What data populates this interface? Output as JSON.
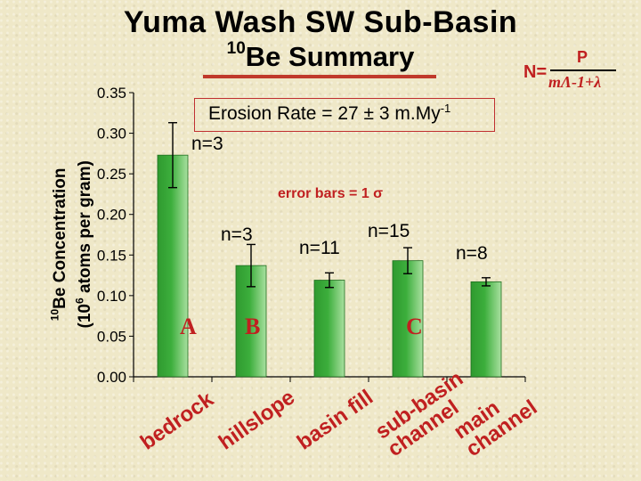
{
  "header": {
    "title_line1": "Yuma Wash SW Sub-Basin",
    "title_line2_sup": "10",
    "title_line2": "Be Summary"
  },
  "formula": {
    "lhs": "N=",
    "numerator": "P",
    "denominator": "mΛ-1+λ"
  },
  "annotations": {
    "erosion_rate": "Erosion Rate = 27 ± 3 m.My",
    "erosion_rate_sup": "-1",
    "error_note": "error bars = 1 σ",
    "letters": [
      "A",
      "B",
      "C"
    ]
  },
  "y_axis_label": {
    "sup1": "10",
    "line1": "Be Concentration",
    "line2_pre": "(10",
    "line2_sup": "6",
    "line2_post": " atoms per gram)"
  },
  "chart_data": {
    "type": "bar",
    "categories": [
      "bedrock",
      "hillslope",
      "basin fill",
      "sub-basin channel",
      "main channel"
    ],
    "category_labels": [
      "bedrock",
      "hillslope",
      "basin fill",
      "sub-basin\nchannel",
      "main\nchannel"
    ],
    "values": [
      0.273,
      0.137,
      0.119,
      0.143,
      0.117
    ],
    "error": [
      0.04,
      0.026,
      0.009,
      0.016,
      0.005
    ],
    "n_labels": [
      "n=3",
      "n=3",
      "n=11",
      "n=15",
      "n=8"
    ],
    "ylim": [
      0,
      0.35
    ],
    "yticks": [
      "0.00",
      "0.05",
      "0.10",
      "0.15",
      "0.20",
      "0.25",
      "0.30",
      "0.35"
    ],
    "bar_color": "#3cae3c",
    "error_color": "#000000",
    "grid": false
  }
}
